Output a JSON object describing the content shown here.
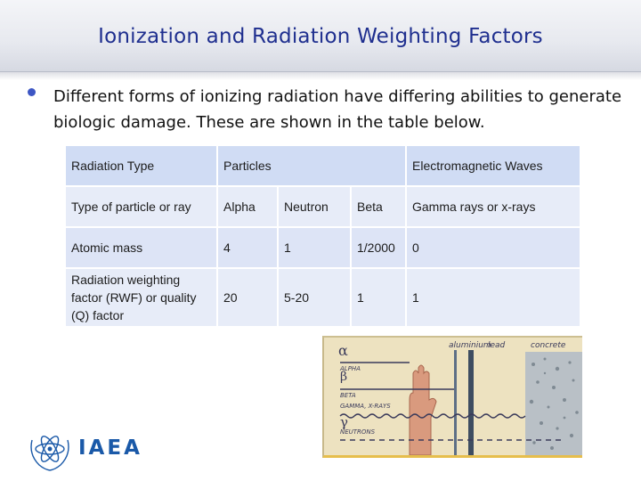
{
  "slide": {
    "title": "Ionization and Radiation Weighting Factors",
    "bullet": "Different forms of ionizing radiation have differing abilities to generate biologic damage. These are shown in the table below."
  },
  "table": {
    "header": {
      "label": "Radiation Type",
      "particles": "Particles",
      "em": "Electromagnetic Waves"
    },
    "rows": [
      {
        "label": "Type of particle or ray",
        "alpha": "Alpha",
        "neutron": "Neutron",
        "beta": "Beta",
        "em": "Gamma rays or x-rays"
      },
      {
        "label": "Atomic mass",
        "alpha": "4",
        "neutron": "1",
        "beta": "1/2000",
        "em": "0"
      },
      {
        "label": "Radiation weighting factor (RWF) or quality (Q) factor",
        "alpha": "20",
        "neutron": "5-20",
        "beta": "1",
        "em": "1"
      }
    ]
  },
  "diagram": {
    "materials": {
      "aluminium": "aluminium",
      "lead": "lead",
      "concrete": "concrete"
    },
    "rays": {
      "alpha_symbol": "α",
      "alpha": "ALPHA",
      "beta_symbol": "β",
      "beta": "BETA",
      "gamma_symbol": "γ",
      "gamma": "GAMMA, X-RAYS",
      "neutrons": "NEUTRONS"
    }
  },
  "footer": {
    "logo_text": "IAEA"
  },
  "colors": {
    "title": "#1f2f8f",
    "bullet": "#3d56c4",
    "table_header": "#d0dcf4",
    "table_row": "#e7ecf8",
    "logo": "#1a59a8"
  }
}
